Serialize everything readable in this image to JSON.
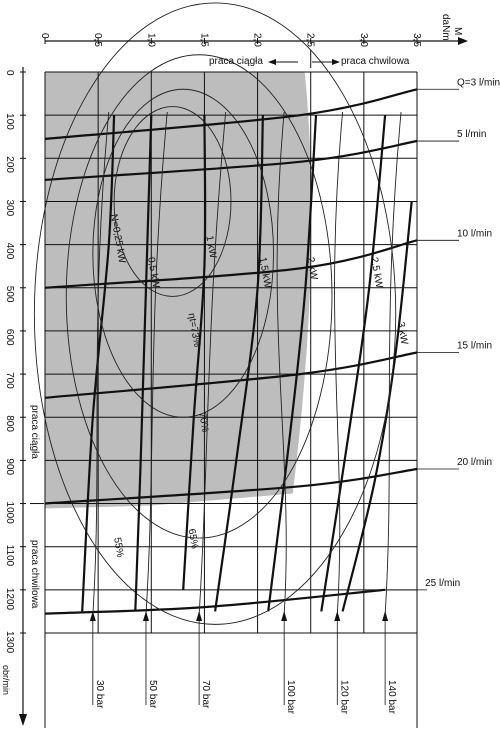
{
  "chart_data": {
    "type": "line",
    "x_axis": {
      "label": "M",
      "unit": "daNm",
      "ticks": [
        "0",
        "0,5",
        "1,0",
        "1,5",
        "2,0",
        "2,5",
        "3,0",
        "3,5"
      ],
      "range": [
        0,
        3.5
      ]
    },
    "y_axis": {
      "unit": "obr/min",
      "ticks": [
        "0",
        "100",
        "200",
        "300",
        "400",
        "500",
        "600",
        "700",
        "800",
        "900",
        "1000",
        "1100",
        "1200",
        "1300"
      ],
      "range": [
        0,
        1300
      ],
      "inverted": true
    },
    "regions": {
      "continuous_label": "praca ciągła",
      "intermittent_label": "praca chwilowa"
    },
    "flow_series": [
      {
        "label": "Q=3 l/min",
        "points": [
          [
            0,
            155
          ],
          [
            2.4,
            100
          ],
          [
            3.5,
            40
          ]
        ]
      },
      {
        "label": "5 l/min",
        "points": [
          [
            0,
            250
          ],
          [
            2.4,
            208
          ],
          [
            3.5,
            160
          ]
        ]
      },
      {
        "label": "10 l/min",
        "points": [
          [
            0,
            500
          ],
          [
            2.4,
            455
          ],
          [
            3.5,
            390
          ]
        ]
      },
      {
        "label": "15 l/min",
        "points": [
          [
            0,
            755
          ],
          [
            2.4,
            700
          ],
          [
            3.5,
            650
          ]
        ]
      },
      {
        "label": "20 l/min",
        "points": [
          [
            0,
            1000
          ],
          [
            2.4,
            960
          ],
          [
            3.5,
            920
          ]
        ]
      },
      {
        "label": "25 l/min",
        "points": [
          [
            0,
            1255
          ],
          [
            1.5,
            1240
          ],
          [
            3.2,
            1200
          ]
        ]
      }
    ],
    "power_series": [
      {
        "label": "N=0,25 kW",
        "points": [
          [
            0.65,
            100
          ],
          [
            0.6,
            400
          ],
          [
            0.45,
            800
          ],
          [
            0.35,
            1250
          ]
        ]
      },
      {
        "label": "0,5 kW",
        "points": [
          [
            1.0,
            100
          ],
          [
            0.95,
            500
          ],
          [
            0.9,
            900
          ],
          [
            0.85,
            1250
          ]
        ]
      },
      {
        "label": "1 kW",
        "points": [
          [
            1.5,
            100
          ],
          [
            1.5,
            450
          ],
          [
            1.4,
            800
          ],
          [
            1.3,
            1200
          ]
        ]
      },
      {
        "label": "1,5 kW",
        "points": [
          [
            2.05,
            100
          ],
          [
            2.0,
            500
          ],
          [
            1.8,
            900
          ],
          [
            1.6,
            1250
          ]
        ]
      },
      {
        "label": "2 kW",
        "points": [
          [
            2.55,
            100
          ],
          [
            2.45,
            500
          ],
          [
            2.3,
            850
          ],
          [
            2.1,
            1250
          ]
        ]
      },
      {
        "label": "2,5 kW",
        "points": [
          [
            3.2,
            100
          ],
          [
            3.05,
            500
          ],
          [
            2.85,
            850
          ],
          [
            2.6,
            1250
          ]
        ]
      },
      {
        "label": "3 kW",
        "points": [
          [
            3.45,
            300
          ],
          [
            3.3,
            650
          ],
          [
            3.1,
            950
          ],
          [
            2.8,
            1250
          ]
        ]
      }
    ],
    "efficiency_labels": [
      "ηt=73%",
      "70%",
      "65%",
      "55%"
    ],
    "pressure_labels": [
      "30 bar",
      "50 bar",
      "70 bar",
      "100 bar",
      "120 bar",
      "140 bar"
    ],
    "pressure_values": [
      30,
      50,
      70,
      100,
      120,
      140
    ],
    "continuous_area": {
      "max_torque": 2.5,
      "max_speed": 1000
    }
  },
  "labels": {
    "x_axis_name": "M",
    "x_axis_unit": "daNm",
    "region_left": "praca ciągła",
    "region_right": "praca chwilowa",
    "y_region_top": "praca ciągła",
    "y_region_bottom": "praca chwilowa",
    "y_unit": "obr/min"
  },
  "colors": {
    "continuous_fill": "#bdbdbd",
    "lines": "#111111"
  }
}
